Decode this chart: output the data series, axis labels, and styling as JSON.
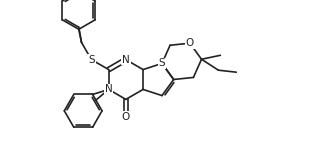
{
  "bg_color": "#ffffff",
  "line_color": "#222222",
  "line_width": 1.2,
  "font_size": 7.5,
  "figsize": [
    3.24,
    1.59
  ],
  "dpi": 100,
  "xlim": [
    -2.5,
    4.5
  ],
  "ylim": [
    -2.2,
    2.2
  ]
}
